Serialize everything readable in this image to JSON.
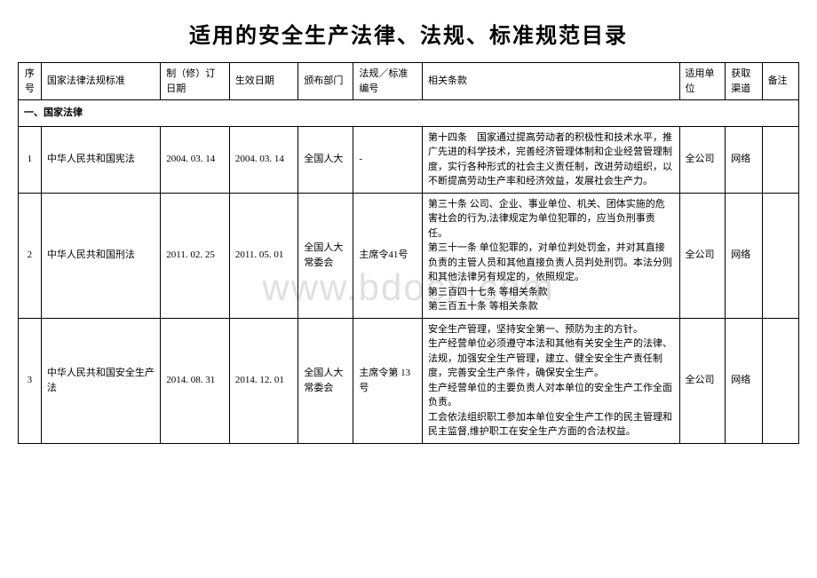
{
  "title": "适用的安全生产法律、法规、标准规范目录",
  "watermark": "www.bdocx.com",
  "headers": {
    "seq": "序号",
    "name": "国家法律法规标准",
    "revise_date": "制（修）订日期",
    "effect_date": "生效日期",
    "dept": "颁布部门",
    "code": "法规／标准编号",
    "clause": "相关条款",
    "unit": "适用单位",
    "channel": "获取渠道",
    "remark": "备注"
  },
  "section1": "一、国家法律",
  "rows": [
    {
      "seq": "1",
      "name": "中华人民共和国宪法",
      "revise_date": "2004. 03. 14",
      "effect_date": "2004. 03. 14",
      "dept": "全国人大",
      "code": "-",
      "clause": "第十四条　国家通过提高劳动者的积极性和技术水平，推广先进的科学技术，完善经济管理体制和企业经营管理制度，实行各种形式的社会主义责任制，改进劳动组织，以不断提高劳动生产率和经济效益，发展社会生产力。",
      "unit": "全公司",
      "channel": "网络",
      "remark": ""
    },
    {
      "seq": "2",
      "name": "中华人民共和国刑法",
      "revise_date": "2011. 02. 25",
      "effect_date": "2011. 05. 01",
      "dept": "全国人大常委会",
      "code": "主席令41号",
      "clause": "第三十条 公司、企业、事业单位、机关、团体实施的危害社会的行为,法律规定为单位犯罪的，应当负刑事责任。\n第三十一条 单位犯罪的，对单位判处罚金，并对其直接负责的主管人员和其他直接负责人员判处刑罚。本法分则和其他法律另有规定的，依照规定。\n第三百四十七条 等相关条款\n第三百五十条 等相关条款",
      "unit": "全公司",
      "channel": "网络",
      "remark": ""
    },
    {
      "seq": "3",
      "name": "中华人民共和国安全生产法",
      "revise_date": "2014. 08. 31",
      "effect_date": "2014. 12. 01",
      "dept": "全国人大常委会",
      "code": "主席令第 13 号",
      "clause": "安全生产管理，坚持安全第一、预防为主的方针。\n生产经营单位必须遵守本法和其他有关安全生产的法律、法规，加强安全生产管理，建立、健全安全生产责任制度，完善安全生产条件，确保安全生产。\n生产经营单位的主要负责人对本单位的安全生产工作全面负责。\n工会依法组织职工参加本单位安全生产工作的民主管理和民主监督,维护职工在安全生产方面的合法权益。",
      "unit": "全公司",
      "channel": "网络",
      "remark": ""
    }
  ]
}
